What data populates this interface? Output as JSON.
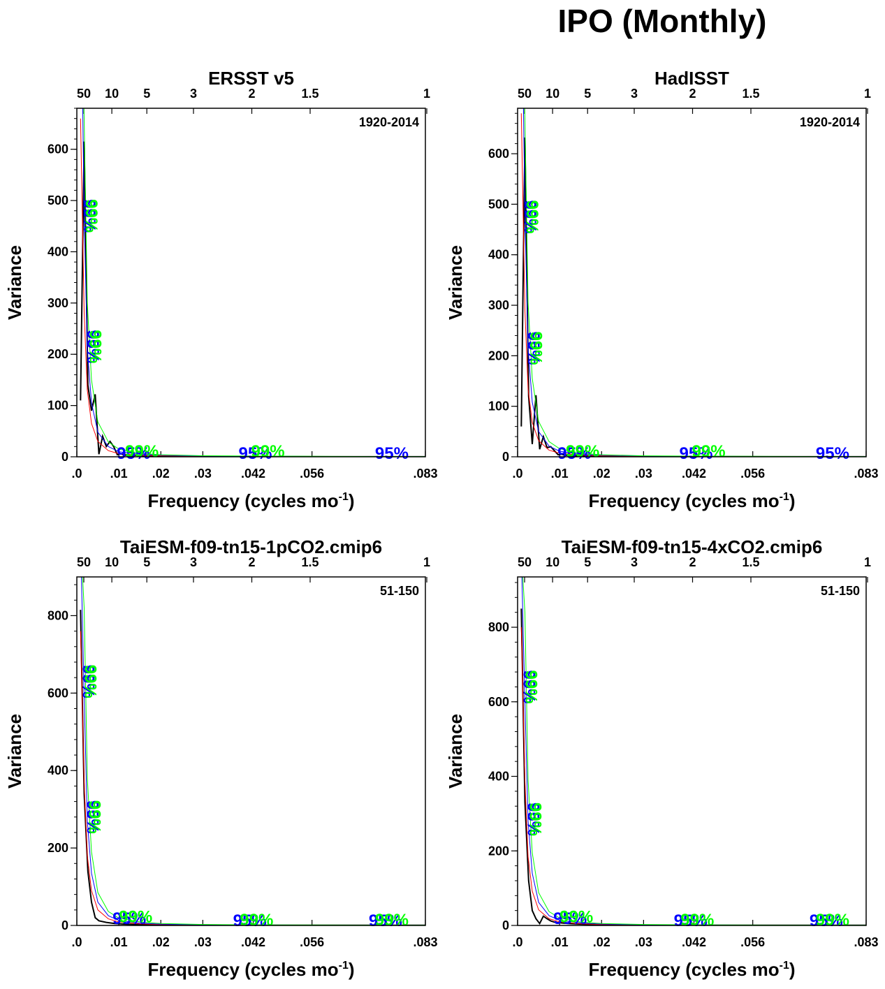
{
  "title": "IPO (Monthly)",
  "chart_data": [
    {
      "type": "line",
      "title": "ERSST v5",
      "period": "1920-2014",
      "xlabel": "Frequency (cycles mo",
      "xlabel_sup": "-1",
      "xlabel_end": ")",
      "ylabel": "Variance",
      "xlim": [
        0,
        0.083
      ],
      "ylim": [
        0,
        680
      ],
      "yticks": [
        0,
        100,
        200,
        300,
        400,
        500,
        600
      ],
      "xticks": [
        0,
        0.01,
        0.02,
        0.03,
        0.042,
        0.056,
        0.083
      ],
      "xtick_labels": [
        ".0",
        ".01",
        ".02",
        ".03",
        ".042",
        ".056",
        ".083"
      ],
      "top_ticks": [
        50,
        10,
        5,
        3,
        2,
        1.5,
        1
      ],
      "top_tick_labels": [
        "50",
        "10",
        "5",
        "3",
        "2",
        "1.5",
        "1"
      ],
      "series": [
        {
          "color": "#000000",
          "x": [
            0.00088,
            0.00175,
            0.00263,
            0.0035,
            0.00438,
            0.00526,
            0.00614,
            0.00702,
            0.0079,
            0.00877,
            0.00965,
            0.0105,
            0.0114,
            0.0123,
            0.0132,
            0.014,
            0.0158,
            0.0175,
            0.02,
            0.025,
            0.03,
            0.04,
            0.05,
            0.06,
            0.07,
            0.083
          ],
          "y": [
            110,
            615,
            140,
            90,
            122,
            5,
            40,
            20,
            30,
            20,
            4,
            6,
            3,
            4,
            2,
            3,
            2,
            1.5,
            1,
            1,
            0.6,
            0.4,
            0.3,
            0.2,
            0.2,
            0.1
          ]
        },
        {
          "color": "#ff0000",
          "x": [
            0.00088,
            0.00175,
            0.0025,
            0.0035,
            0.005,
            0.0075,
            0.01,
            0.015,
            0.02,
            0.03,
            0.045,
            0.06,
            0.083
          ],
          "y": [
            660,
            280,
            130,
            65,
            30,
            12,
            6,
            3,
            2,
            1,
            0.6,
            0.4,
            0.3
          ]
        },
        {
          "color": "#0000ff",
          "x": [
            0.00088,
            0.00175,
            0.0025,
            0.0035,
            0.005,
            0.0075,
            0.01,
            0.015,
            0.02,
            0.03,
            0.045,
            0.06,
            0.083
          ],
          "y": [
            1000,
            470,
            210,
            105,
            48,
            20,
            10,
            5,
            3,
            1.5,
            1,
            0.6,
            0.4
          ]
        },
        {
          "color": "#00ff00",
          "x": [
            0.00088,
            0.00175,
            0.0025,
            0.0035,
            0.005,
            0.0075,
            0.01,
            0.015,
            0.02,
            0.03,
            0.045,
            0.06,
            0.083
          ],
          "y": [
            1000,
            660,
            300,
            150,
            68,
            29,
            15,
            7,
            4,
            2,
            1.3,
            0.8,
            0.6
          ]
        }
      ],
      "labels": [
        {
          "text": "99%",
          "x": 0.0017,
          "y": 470,
          "rot": 90,
          "color": "#0000ff"
        },
        {
          "text": "99%",
          "x": 0.0022,
          "y": 470,
          "rot": 90,
          "color": "#00ff00"
        },
        {
          "text": "95%",
          "x": 0.0025,
          "y": 215,
          "rot": 90,
          "color": "#0000ff"
        },
        {
          "text": "99%",
          "x": 0.0031,
          "y": 215,
          "rot": 90,
          "color": "#00ff00"
        },
        {
          "text": "95%",
          "x": 0.0135,
          "y": -4,
          "rot": 0,
          "color": "#0000ff"
        },
        {
          "text": "99%",
          "x": 0.0155,
          "y": 0,
          "rot": 0,
          "color": "#00ff00"
        },
        {
          "text": "95%",
          "x": 0.0425,
          "y": -4,
          "rot": 0,
          "color": "#0000ff"
        },
        {
          "text": "99%",
          "x": 0.0455,
          "y": 0,
          "rot": 0,
          "color": "#00ff00"
        },
        {
          "text": "95%",
          "x": 0.075,
          "y": -4,
          "rot": 0,
          "color": "#0000ff"
        }
      ]
    },
    {
      "type": "line",
      "title": "HadISST",
      "period": "1920-2014",
      "xlabel": "Frequency (cycles mo",
      "xlabel_sup": "-1",
      "xlabel_end": ")",
      "ylabel": "Variance",
      "xlim": [
        0,
        0.083
      ],
      "ylim": [
        0,
        690
      ],
      "yticks": [
        0,
        100,
        200,
        300,
        400,
        500,
        600
      ],
      "xticks": [
        0,
        0.01,
        0.02,
        0.03,
        0.042,
        0.056,
        0.083
      ],
      "xtick_labels": [
        ".0",
        ".01",
        ".02",
        ".03",
        ".042",
        ".056",
        ".083"
      ],
      "top_ticks": [
        50,
        10,
        5,
        3,
        2,
        1.5,
        1
      ],
      "top_tick_labels": [
        "50",
        "10",
        "5",
        "3",
        "2",
        "1.5",
        "1"
      ],
      "series": [
        {
          "color": "#000000",
          "x": [
            0.00088,
            0.00175,
            0.00263,
            0.0035,
            0.00438,
            0.00526,
            0.00614,
            0.00702,
            0.0079,
            0.00877,
            0.00965,
            0.0105,
            0.0114,
            0.0123,
            0.0132,
            0.014,
            0.0158,
            0.0175,
            0.02,
            0.025,
            0.03,
            0.04,
            0.05,
            0.06,
            0.07,
            0.083
          ],
          "y": [
            60,
            632,
            120,
            25,
            122,
            15,
            40,
            18,
            20,
            12,
            4,
            5,
            3,
            3,
            2,
            2,
            1.5,
            1,
            1,
            1,
            0.6,
            0.4,
            0.3,
            0.2,
            0.2,
            0.1
          ]
        },
        {
          "color": "#ff0000",
          "x": [
            0.00088,
            0.00175,
            0.0025,
            0.0035,
            0.005,
            0.0075,
            0.01,
            0.015,
            0.02,
            0.03,
            0.045,
            0.06,
            0.083
          ],
          "y": [
            680,
            290,
            135,
            68,
            32,
            13,
            7,
            3.5,
            2,
            1,
            0.6,
            0.4,
            0.3
          ]
        },
        {
          "color": "#0000ff",
          "x": [
            0.00088,
            0.00175,
            0.0025,
            0.0035,
            0.005,
            0.0075,
            0.01,
            0.015,
            0.02,
            0.03,
            0.045,
            0.06,
            0.083
          ],
          "y": [
            1000,
            480,
            215,
            108,
            50,
            21,
            11,
            5,
            3,
            1.5,
            1,
            0.6,
            0.4
          ]
        },
        {
          "color": "#00ff00",
          "x": [
            0.00088,
            0.00175,
            0.0025,
            0.0035,
            0.005,
            0.0075,
            0.01,
            0.015,
            0.02,
            0.03,
            0.045,
            0.06,
            0.083
          ],
          "y": [
            1000,
            670,
            305,
            155,
            70,
            30,
            16,
            7,
            4,
            2,
            1.3,
            0.8,
            0.6
          ]
        }
      ],
      "labels": [
        {
          "text": "99%",
          "x": 0.0017,
          "y": 475,
          "rot": 90,
          "color": "#0000ff"
        },
        {
          "text": "99%",
          "x": 0.0022,
          "y": 475,
          "rot": 90,
          "color": "#00ff00"
        },
        {
          "text": "95%",
          "x": 0.0025,
          "y": 215,
          "rot": 90,
          "color": "#0000ff"
        },
        {
          "text": "99%",
          "x": 0.0031,
          "y": 215,
          "rot": 90,
          "color": "#00ff00"
        },
        {
          "text": "95%",
          "x": 0.0135,
          "y": -4,
          "rot": 0,
          "color": "#0000ff"
        },
        {
          "text": "99%",
          "x": 0.0155,
          "y": 0,
          "rot": 0,
          "color": "#00ff00"
        },
        {
          "text": "95%",
          "x": 0.0425,
          "y": -4,
          "rot": 0,
          "color": "#0000ff"
        },
        {
          "text": "99%",
          "x": 0.0455,
          "y": 0,
          "rot": 0,
          "color": "#00ff00"
        },
        {
          "text": "95%",
          "x": 0.075,
          "y": -4,
          "rot": 0,
          "color": "#0000ff"
        }
      ]
    },
    {
      "type": "line",
      "title": "TaiESM-f09-tn15-1pCO2.cmip6",
      "period": "51-150",
      "xlabel": "Frequency (cycles mo",
      "xlabel_sup": "-1",
      "xlabel_end": ")",
      "ylabel": "Variance",
      "xlim": [
        0,
        0.083
      ],
      "ylim": [
        0,
        900
      ],
      "yticks": [
        0,
        200,
        400,
        600,
        800
      ],
      "xticks": [
        0,
        0.01,
        0.02,
        0.03,
        0.042,
        0.056,
        0.083
      ],
      "xtick_labels": [
        ".0",
        ".01",
        ".02",
        ".03",
        ".042",
        ".056",
        ".083"
      ],
      "top_ticks": [
        50,
        10,
        5,
        3,
        2,
        1.5,
        1
      ],
      "top_tick_labels": [
        "50",
        "10",
        "5",
        "3",
        "2",
        "1.5",
        "1"
      ],
      "series": [
        {
          "color": "#000000",
          "x": [
            0.00088,
            0.00175,
            0.00263,
            0.0035,
            0.00438,
            0.00526,
            0.007,
            0.009,
            0.012,
            0.016,
            0.02,
            0.03,
            0.045,
            0.06,
            0.083
          ],
          "y": [
            815,
            340,
            140,
            60,
            20,
            12,
            8,
            5,
            3,
            2,
            1.5,
            1,
            0.6,
            0.4,
            0.3
          ]
        },
        {
          "color": "#ff0000",
          "x": [
            0.00088,
            0.00175,
            0.0025,
            0.0035,
            0.005,
            0.0075,
            0.01,
            0.015,
            0.02,
            0.03,
            0.045,
            0.06,
            0.083
          ],
          "y": [
            760,
            370,
            180,
            90,
            40,
            17,
            9,
            4,
            2.5,
            1.2,
            0.7,
            0.5,
            0.3
          ]
        },
        {
          "color": "#0000ff",
          "x": [
            0.00088,
            0.00175,
            0.0025,
            0.0035,
            0.005,
            0.0075,
            0.01,
            0.015,
            0.02,
            0.03,
            0.045,
            0.06,
            0.083
          ],
          "y": [
            1000,
            590,
            270,
            135,
            60,
            25,
            13,
            6,
            3.5,
            1.8,
            1,
            0.7,
            0.5
          ]
        },
        {
          "color": "#00ff00",
          "x": [
            0.00088,
            0.00175,
            0.0025,
            0.0035,
            0.005,
            0.0075,
            0.01,
            0.015,
            0.02,
            0.03,
            0.045,
            0.06,
            0.083
          ],
          "y": [
            1000,
            820,
            380,
            190,
            85,
            36,
            19,
            9,
            5,
            2.5,
            1.5,
            1,
            0.7
          ]
        }
      ],
      "labels": [
        {
          "text": "99%",
          "x": 0.0014,
          "y": 630,
          "rot": 90,
          "color": "#0000ff"
        },
        {
          "text": "99%",
          "x": 0.0019,
          "y": 630,
          "rot": 90,
          "color": "#00ff00"
        },
        {
          "text": "95%",
          "x": 0.0024,
          "y": 280,
          "rot": 90,
          "color": "#0000ff"
        },
        {
          "text": "99%",
          "x": 0.0029,
          "y": 280,
          "rot": 90,
          "color": "#00ff00"
        },
        {
          "text": "95%",
          "x": 0.0125,
          "y": 4,
          "rot": 0,
          "color": "#0000ff"
        },
        {
          "text": "99%",
          "x": 0.014,
          "y": 8,
          "rot": 0,
          "color": "#00ff00"
        },
        {
          "text": "95%",
          "x": 0.0412,
          "y": -2,
          "rot": 0,
          "color": "#0000ff"
        },
        {
          "text": "99%",
          "x": 0.0428,
          "y": 0,
          "rot": 0,
          "color": "#00ff00"
        },
        {
          "text": "95%",
          "x": 0.0735,
          "y": -2,
          "rot": 0,
          "color": "#0000ff"
        },
        {
          "text": "99%",
          "x": 0.075,
          "y": 0,
          "rot": 0,
          "color": "#00ff00"
        }
      ]
    },
    {
      "type": "line",
      "title": "TaiESM-f09-tn15-4xCO2.cmip6",
      "period": "51-150",
      "xlabel": "Frequency (cycles mo",
      "xlabel_sup": "-1",
      "xlabel_end": ")",
      "ylabel": "Variance",
      "xlim": [
        0,
        0.083
      ],
      "ylim": [
        0,
        935
      ],
      "yticks": [
        0,
        200,
        400,
        600,
        800
      ],
      "xticks": [
        0,
        0.01,
        0.02,
        0.03,
        0.042,
        0.056,
        0.083
      ],
      "xtick_labels": [
        ".0",
        ".01",
        ".02",
        ".03",
        ".042",
        ".056",
        ".083"
      ],
      "top_ticks": [
        50,
        10,
        5,
        3,
        2,
        1.5,
        1
      ],
      "top_tick_labels": [
        "50",
        "10",
        "5",
        "3",
        "2",
        "1.5",
        "1"
      ],
      "series": [
        {
          "color": "#000000",
          "x": [
            0.00088,
            0.00175,
            0.00263,
            0.0035,
            0.00438,
            0.00526,
            0.00614,
            0.00702,
            0.0079,
            0.009,
            0.012,
            0.016,
            0.02,
            0.03,
            0.045,
            0.06,
            0.083
          ],
          "y": [
            850,
            330,
            120,
            40,
            18,
            5,
            25,
            18,
            12,
            8,
            5,
            3,
            2,
            1,
            0.6,
            0.4,
            0.3
          ]
        },
        {
          "color": "#ff0000",
          "x": [
            0.00088,
            0.00175,
            0.0025,
            0.0035,
            0.005,
            0.0075,
            0.01,
            0.015,
            0.02,
            0.03,
            0.045,
            0.06,
            0.083
          ],
          "y": [
            800,
            390,
            185,
            92,
            42,
            18,
            9.5,
            4.5,
            2.7,
            1.3,
            0.8,
            0.5,
            0.3
          ]
        },
        {
          "color": "#0000ff",
          "x": [
            0.00088,
            0.00175,
            0.0025,
            0.0035,
            0.005,
            0.0075,
            0.01,
            0.015,
            0.02,
            0.03,
            0.045,
            0.06,
            0.083
          ],
          "y": [
            1000,
            600,
            280,
            140,
            62,
            26,
            14,
            6.5,
            3.8,
            1.9,
            1.1,
            0.7,
            0.5
          ]
        },
        {
          "color": "#00ff00",
          "x": [
            0.00088,
            0.00175,
            0.0025,
            0.0035,
            0.005,
            0.0075,
            0.01,
            0.015,
            0.02,
            0.03,
            0.045,
            0.06,
            0.083
          ],
          "y": [
            1000,
            840,
            390,
            195,
            88,
            37,
            20,
            9,
            5.2,
            2.6,
            1.5,
            1,
            0.7
          ]
        }
      ],
      "labels": [
        {
          "text": "99%",
          "x": 0.0014,
          "y": 640,
          "rot": 90,
          "color": "#0000ff"
        },
        {
          "text": "99%",
          "x": 0.0019,
          "y": 640,
          "rot": 90,
          "color": "#00ff00"
        },
        {
          "text": "95%",
          "x": 0.0024,
          "y": 285,
          "rot": 90,
          "color": "#0000ff"
        },
        {
          "text": "99%",
          "x": 0.0029,
          "y": 285,
          "rot": 90,
          "color": "#00ff00"
        },
        {
          "text": "95%",
          "x": 0.0125,
          "y": 4,
          "rot": 0,
          "color": "#0000ff"
        },
        {
          "text": "99%",
          "x": 0.014,
          "y": 8,
          "rot": 0,
          "color": "#00ff00"
        },
        {
          "text": "95%",
          "x": 0.0412,
          "y": -2,
          "rot": 0,
          "color": "#0000ff"
        },
        {
          "text": "99%",
          "x": 0.0428,
          "y": 0,
          "rot": 0,
          "color": "#00ff00"
        },
        {
          "text": "95%",
          "x": 0.0735,
          "y": -2,
          "rot": 0,
          "color": "#0000ff"
        },
        {
          "text": "99%",
          "x": 0.075,
          "y": 0,
          "rot": 0,
          "color": "#00ff00"
        }
      ]
    }
  ]
}
